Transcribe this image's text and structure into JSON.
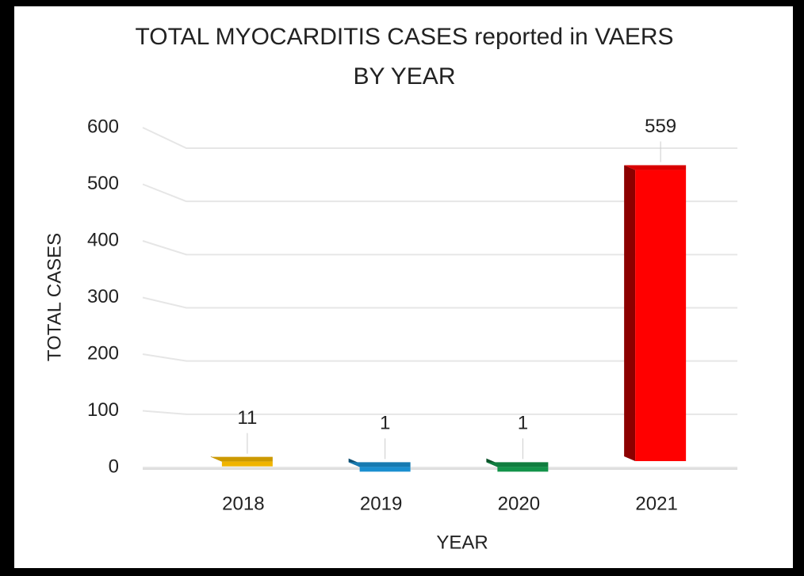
{
  "chart_data": {
    "type": "bar",
    "title": [
      "TOTAL MYOCARDITIS CASES reported in VAERS",
      "BY YEAR"
    ],
    "x_label": "YEAR",
    "y_label": "TOTAL CASES",
    "categories": [
      "2018",
      "2019",
      "2020",
      "2021"
    ],
    "values": [
      11,
      1,
      1,
      559
    ],
    "colors": [
      "#f0b400",
      "#1b8fd0",
      "#13934a",
      "#ff0000"
    ],
    "ylim": [
      0,
      600
    ],
    "yticks": [
      0,
      100,
      200,
      300,
      400,
      500,
      600
    ],
    "grid": true
  }
}
